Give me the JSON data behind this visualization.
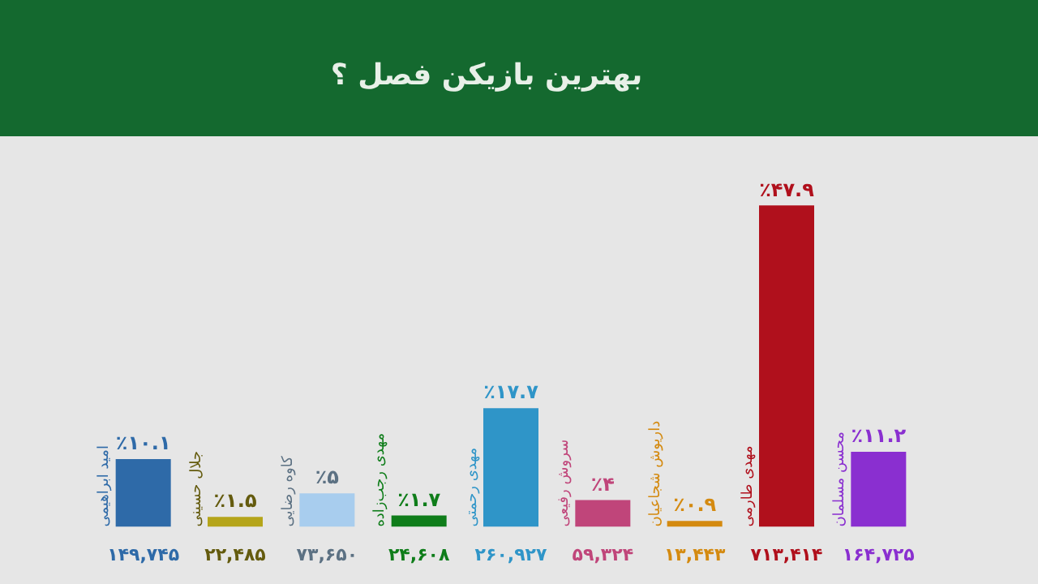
{
  "chart_data": {
    "type": "bar",
    "title": "بهترین بازیکن فصل ؟",
    "categories": [
      "۱۴۹,۷۴۵",
      "۲۲,۴۸۵",
      "۷۳,۶۵۰",
      "۲۴,۶۰۸",
      "۲۶۰,۹۲۷",
      "۵۹,۳۲۴",
      "۱۳,۴۴۳",
      "۷۱۳,۴۱۴",
      "۱۶۴,۷۲۵"
    ],
    "values": [
      10.1,
      1.5,
      5,
      1.7,
      17.7,
      4,
      0.9,
      47.9,
      11.2
    ],
    "value_labels": [
      "٪۱۰.۱",
      "٪۱.۵",
      "٪۵",
      "٪۱.۷",
      "٪۱۷.۷",
      "٪۴",
      "٪۰.۹",
      "٪۴۷.۹",
      "٪۱۱.۲"
    ],
    "colors": [
      "#2e6aa8",
      "#b5a51a",
      "#a8cdee",
      "#0f7d1a",
      "#2f95c8",
      "#c0457a",
      "#d48a10",
      "#b0101c",
      "#8a2fd0"
    ],
    "annotations": [
      {
        "text": "امید ابراهیمی",
        "x": "۱۴۹,۷۴۵",
        "y": 0
      },
      {
        "text": "جلال حسینی",
        "x": "۲۲,۴۸۵",
        "y": 0
      },
      {
        "text": "کاوه رضایی",
        "x": "۷۳,۶۵۰",
        "y": 0
      },
      {
        "text": "مهدی رجب‌زاده",
        "x": "۲۴,۶۰۸",
        "y": 0
      },
      {
        "text": "مهدی رحمتی",
        "x": "۲۶۰,۹۲۷",
        "y": 0
      },
      {
        "text": "سروش رفیعی",
        "x": "۵۹,۳۲۴",
        "y": 0
      },
      {
        "text": "داریوش شجاعیان",
        "x": "۱۳,۴۴۳",
        "y": 0
      },
      {
        "text": "مهدی طارمی",
        "x": "۷۱۳,۴۱۴",
        "y": 0
      },
      {
        "text": "محسن مسلمان",
        "x": "۱۶۴,۷۲۵",
        "y": 0
      }
    ],
    "relative": false,
    "grid": false,
    "legend": false
  }
}
